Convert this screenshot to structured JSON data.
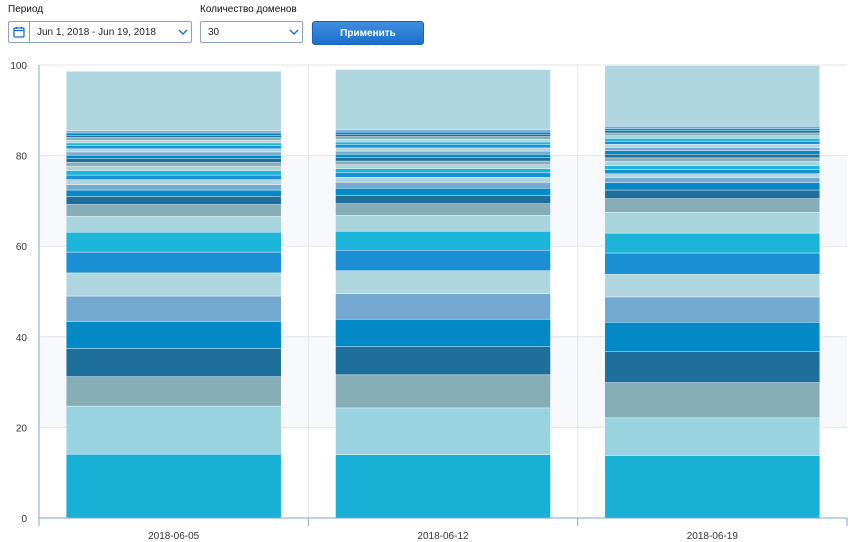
{
  "filters": {
    "period_label": "Период",
    "period_value": "Jun 1, 2018 - Jun 19, 2018",
    "domains_label": "Количество доменов",
    "domains_value": "30",
    "apply_label": "Применить"
  },
  "chart_data": {
    "type": "bar",
    "stacked": true,
    "title": "",
    "xlabel": "",
    "ylabel": "",
    "ylim": [
      0,
      100
    ],
    "yticks": [
      0,
      20,
      40,
      60,
      80,
      100
    ],
    "grid": true,
    "categories": [
      "2018-06-05",
      "2018-06-12",
      "2018-06-19"
    ],
    "series": [
      {
        "color": "#1aafd4",
        "values": [
          14.1,
          14.0,
          13.8
        ]
      },
      {
        "color": "#99d3e0",
        "values": [
          10.6,
          10.3,
          8.3
        ]
      },
      {
        "color": "#87adb7",
        "values": [
          6.5,
          7.3,
          7.8
        ]
      },
      {
        "color": "#1e6f9b",
        "values": [
          6.2,
          6.2,
          6.8
        ]
      },
      {
        "color": "#0389c5",
        "values": [
          6.0,
          6.1,
          6.5
        ]
      },
      {
        "color": "#74a9d1",
        "values": [
          5.6,
          5.6,
          5.6
        ]
      },
      {
        "color": "#afd6de",
        "values": [
          5.1,
          5.1,
          5.0
        ]
      },
      {
        "color": "#1b8fd4",
        "values": [
          4.6,
          4.5,
          4.7
        ]
      },
      {
        "color": "#1cb4d8",
        "values": [
          4.4,
          4.2,
          4.4
        ]
      },
      {
        "color": "#a7d4dd",
        "values": [
          3.5,
          3.5,
          4.6
        ]
      },
      {
        "color": "#87adb7",
        "values": [
          2.6,
          2.6,
          3.0
        ]
      },
      {
        "color": "#1e6f9b",
        "values": [
          1.8,
          1.8,
          1.9
        ]
      },
      {
        "color": "#0389c5",
        "values": [
          1.4,
          1.6,
          1.6
        ]
      },
      {
        "color": "#74a9d1",
        "values": [
          1.2,
          1.3,
          1.1
        ]
      },
      {
        "color": "#afd6de",
        "values": [
          1.1,
          1.1,
          0.9
        ]
      },
      {
        "color": "#1b8fd4",
        "values": [
          1.0,
          1.0,
          0.9
        ]
      },
      {
        "color": "#1cb4d8",
        "values": [
          1.0,
          0.9,
          0.9
        ]
      },
      {
        "color": "#a7d4dd",
        "values": [
          0.9,
          0.9,
          0.9
        ]
      },
      {
        "color": "#87adb7",
        "values": [
          0.9,
          0.8,
          0.8
        ]
      },
      {
        "color": "#1e6f9b",
        "values": [
          0.8,
          0.8,
          0.8
        ]
      },
      {
        "color": "#0389c5",
        "values": [
          0.8,
          0.7,
          0.8
        ]
      },
      {
        "color": "#74a9d1",
        "values": [
          0.7,
          0.7,
          0.7
        ]
      },
      {
        "color": "#afd6de",
        "values": [
          0.7,
          0.7,
          0.7
        ]
      },
      {
        "color": "#1b8fd4",
        "values": [
          0.7,
          0.7,
          0.7
        ]
      },
      {
        "color": "#1cb4d8",
        "values": [
          0.6,
          0.6,
          0.6
        ]
      },
      {
        "color": "#a7d4dd",
        "values": [
          0.6,
          0.6,
          0.6
        ]
      },
      {
        "color": "#87adb7",
        "values": [
          0.6,
          0.6,
          0.6
        ]
      },
      {
        "color": "#1e6f9b",
        "values": [
          0.5,
          0.5,
          0.5
        ]
      },
      {
        "color": "#0389c5",
        "values": [
          0.5,
          0.5,
          0.5
        ]
      },
      {
        "color": "#74a9d1",
        "values": [
          0.5,
          0.5,
          0.5
        ]
      },
      {
        "color": "#afd6de",
        "values": [
          13.1,
          13.3,
          13.4
        ]
      }
    ]
  }
}
